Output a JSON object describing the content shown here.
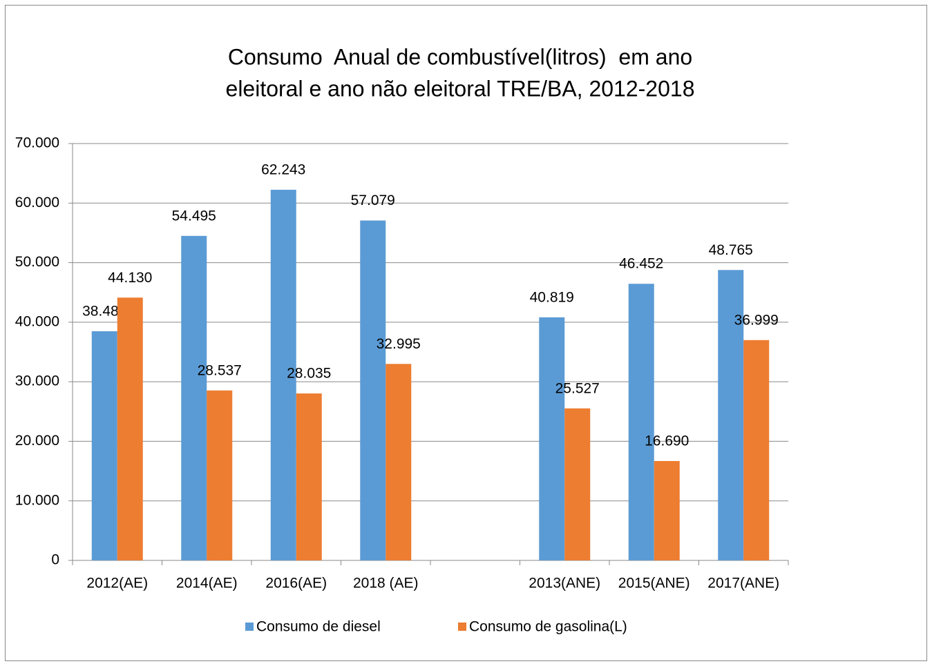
{
  "chart_data": {
    "type": "bar",
    "title": [
      "Consumo  Anual de combustível(litros)  em ano",
      "eleitoral e ano não eleitoral TRE/BA, 2012-2018"
    ],
    "categories": [
      "2012(AE)",
      "2014(AE)",
      "2016(AE)",
      "2018 (AE)",
      null,
      "2013(ANE)",
      "2015(ANE)",
      "2017(ANE)"
    ],
    "series": [
      {
        "name": "Consumo de diesel",
        "color": "#5b9bd5",
        "values": [
          38486,
          54495,
          62243,
          57079,
          null,
          40819,
          46452,
          48765
        ],
        "value_labels": [
          "38.486",
          "54.495",
          "62.243",
          "57.079",
          null,
          "40.819",
          "46.452",
          "48.765"
        ]
      },
      {
        "name": "Consumo de gasolina(L)",
        "color": "#ed7d31",
        "values": [
          44130,
          28537,
          28035,
          32995,
          null,
          25527,
          16690,
          36999
        ],
        "value_labels": [
          "44.130",
          "28.537",
          "28.035",
          "32.995",
          null,
          "25.527",
          "16.690",
          "36.999"
        ]
      }
    ],
    "ylim": [
      0,
      70000
    ],
    "yticks": [
      0,
      {
        "value": 10000,
        "label": "10.000"
      },
      {
        "value": 20000,
        "label": "20.000"
      },
      {
        "value": 30000,
        "label": "30.000"
      },
      {
        "value": 40000,
        "label": "40.000"
      },
      {
        "value": 50000,
        "label": "50.000"
      },
      {
        "value": 60000,
        "label": "60.000"
      },
      {
        "value": 70000,
        "label": "70.000"
      }
    ],
    "grid": true,
    "legend": "bottom"
  }
}
